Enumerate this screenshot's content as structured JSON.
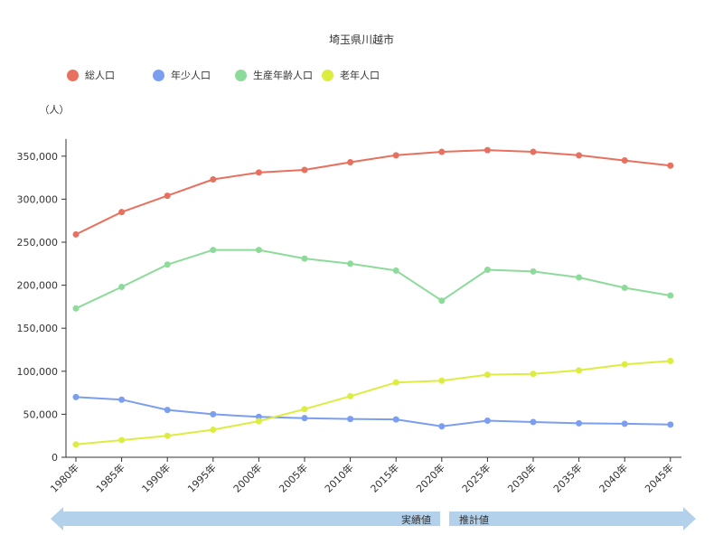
{
  "chart_title": "埼玉県川越市",
  "y_unit_label": "（人）",
  "colors": {
    "total": "#e8705e",
    "youth": "#7b9ef0",
    "working": "#8ddb9a",
    "elderly": "#dced40",
    "axis": "#333333",
    "gridline": "#d9d9d9",
    "timeline_arrow": "#b3d1ea"
  },
  "timeline": {
    "actual_label": "実績値",
    "projected_label": "推計値"
  },
  "chart_data": {
    "type": "line",
    "title": "埼玉県川越市",
    "ylabel": "（人）",
    "ylim": [
      0,
      370000
    ],
    "yticks": [
      0,
      50000,
      100000,
      150000,
      200000,
      250000,
      300000,
      350000
    ],
    "ytick_labels": [
      "0",
      "50,000",
      "100,000",
      "150,000",
      "200,000",
      "250,000",
      "300,000",
      "350,000"
    ],
    "grid": false,
    "legend_position": "top-left",
    "categories": [
      "1980年",
      "1985年",
      "1990年",
      "1995年",
      "2000年",
      "2005年",
      "2010年",
      "2015年",
      "2020年",
      "2025年",
      "2030年",
      "2035年",
      "2040年",
      "2045年"
    ],
    "series": [
      {
        "name": "総人口",
        "color_key": "total",
        "values": [
          259000,
          285000,
          304000,
          323000,
          331000,
          334000,
          343000,
          351000,
          355000,
          357000,
          355000,
          351000,
          345000,
          339000
        ]
      },
      {
        "name": "年少人口",
        "color_key": "youth",
        "values": [
          70000,
          67000,
          55000,
          50000,
          47000,
          45500,
          44500,
          44000,
          36000,
          42500,
          41000,
          39500,
          39000,
          38000
        ]
      },
      {
        "name": "生産年齢人口",
        "color_key": "working",
        "values": [
          173000,
          198000,
          224000,
          241000,
          241000,
          231000,
          225000,
          217000,
          182000,
          218000,
          216000,
          209000,
          197000,
          188000
        ]
      },
      {
        "name": "老年人口",
        "color_key": "elderly",
        "values": [
          15000,
          20000,
          25000,
          32000,
          42000,
          56000,
          71000,
          87000,
          89000,
          96000,
          97000,
          101000,
          108000,
          112000
        ]
      }
    ]
  }
}
